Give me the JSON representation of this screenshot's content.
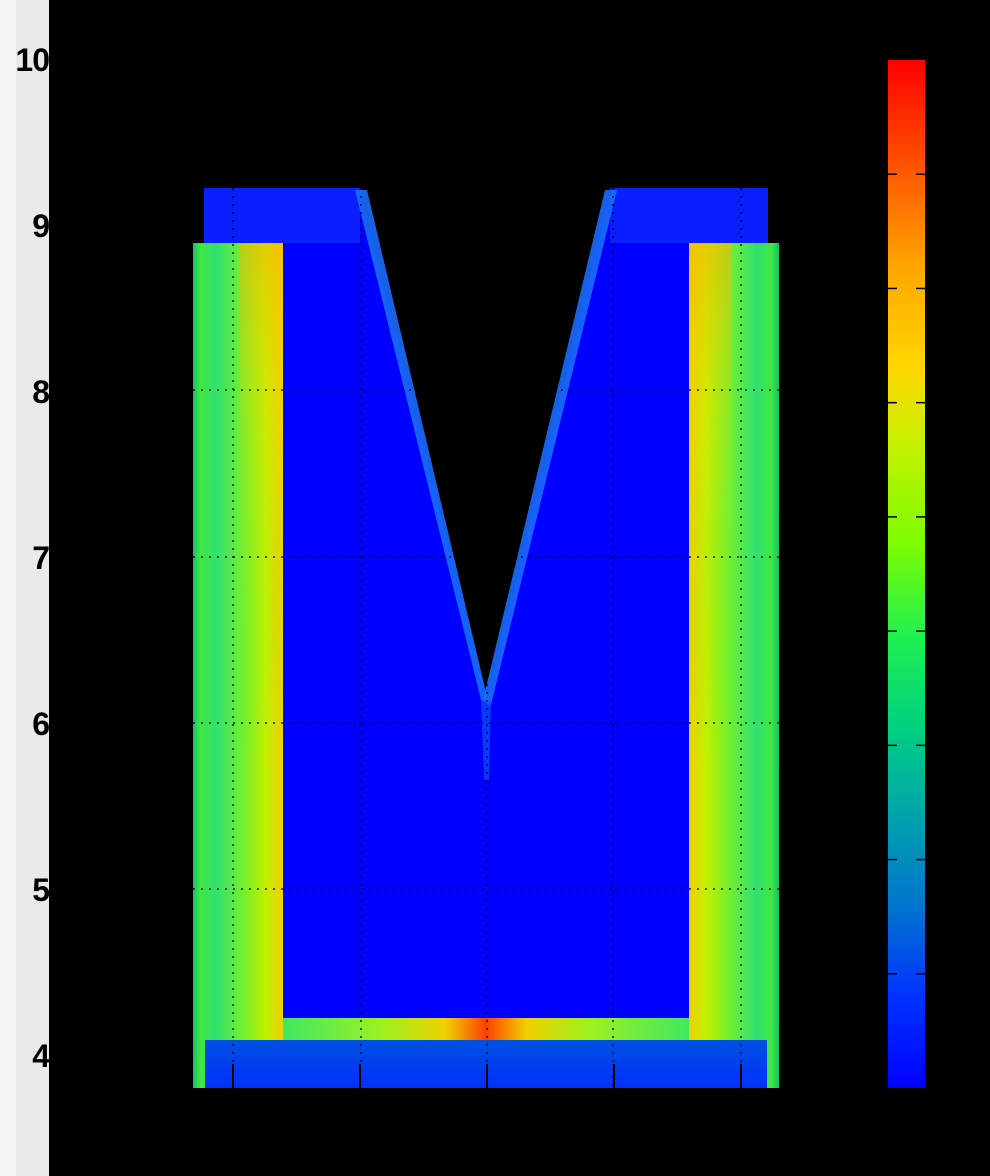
{
  "chart_data": {
    "type": "heatmap",
    "title": "",
    "xlabel": "",
    "ylabel": "",
    "y_tick_labels": [
      "10",
      "9",
      "8",
      "7",
      "6",
      "5",
      "4"
    ],
    "y_ticks": [
      10,
      9,
      8,
      7,
      6,
      5,
      4
    ],
    "ylim": [
      3.65,
      10
    ],
    "x_tick_count": 5,
    "grid": true,
    "colormap": "jet",
    "colorbar": {
      "position": "right",
      "tick_count": 9,
      "tick_labels": []
    },
    "background_color": "#000000",
    "description_regions": [
      {
        "name": "top-caps",
        "value_level": "low"
      },
      {
        "name": "outer-columns",
        "value_level": "medium-high"
      },
      {
        "name": "inner-V-region",
        "value_level": "low"
      },
      {
        "name": "bottom-edge-peak",
        "value_level": "high"
      }
    ]
  }
}
